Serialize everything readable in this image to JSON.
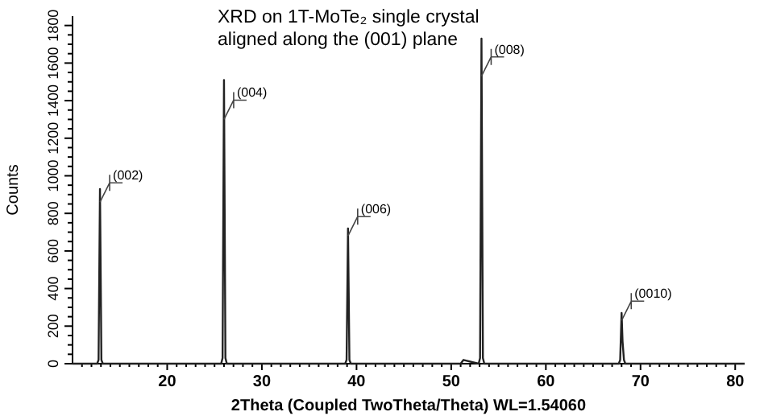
{
  "chart_data": {
    "type": "line",
    "title": "XRD on 1T-MoTe₂ single crystal\naligned along the (001) plane",
    "xlabel": "2Theta (Coupled TwoTheta/Theta) WL=1.54060",
    "ylabel": "Counts",
    "xlim": [
      10,
      81
    ],
    "ylim": [
      0,
      1850
    ],
    "xticks": [
      {
        "value": 11,
        "label": null
      },
      {
        "value": 12,
        "label": null
      },
      {
        "value": 13,
        "label": null
      },
      {
        "value": 14,
        "label": null
      },
      {
        "value": 15,
        "label": null
      },
      {
        "value": 16,
        "label": null
      },
      {
        "value": 17,
        "label": null
      },
      {
        "value": 18,
        "label": null
      },
      {
        "value": 19,
        "label": null
      },
      20,
      {
        "value": 21,
        "label": null
      },
      {
        "value": 22,
        "label": null
      },
      {
        "value": 23,
        "label": null
      },
      {
        "value": 24,
        "label": null
      },
      {
        "value": 25,
        "label": null
      },
      {
        "value": 26,
        "label": null
      },
      {
        "value": 27,
        "label": null
      },
      {
        "value": 28,
        "label": null
      },
      {
        "value": 29,
        "label": null
      },
      30,
      {
        "value": 31,
        "label": null
      },
      {
        "value": 32,
        "label": null
      },
      {
        "value": 33,
        "label": null
      },
      {
        "value": 34,
        "label": null
      },
      {
        "value": 35,
        "label": null
      },
      {
        "value": 36,
        "label": null
      },
      {
        "value": 37,
        "label": null
      },
      {
        "value": 38,
        "label": null
      },
      {
        "value": 39,
        "label": null
      },
      40,
      {
        "value": 41,
        "label": null
      },
      {
        "value": 42,
        "label": null
      },
      {
        "value": 43,
        "label": null
      },
      {
        "value": 44,
        "label": null
      },
      {
        "value": 45,
        "label": null
      },
      {
        "value": 46,
        "label": null
      },
      {
        "value": 47,
        "label": null
      },
      {
        "value": 48,
        "label": null
      },
      {
        "value": 49,
        "label": null
      },
      50,
      {
        "value": 51,
        "label": null
      },
      {
        "value": 52,
        "label": null
      },
      {
        "value": 53,
        "label": null
      },
      {
        "value": 54,
        "label": null
      },
      {
        "value": 55,
        "label": null
      },
      {
        "value": 56,
        "label": null
      },
      {
        "value": 57,
        "label": null
      },
      {
        "value": 58,
        "label": null
      },
      {
        "value": 59,
        "label": null
      },
      60,
      {
        "value": 61,
        "label": null
      },
      {
        "value": 62,
        "label": null
      },
      {
        "value": 63,
        "label": null
      },
      {
        "value": 64,
        "label": null
      },
      {
        "value": 65,
        "label": null
      },
      {
        "value": 66,
        "label": null
      },
      {
        "value": 67,
        "label": null
      },
      {
        "value": 68,
        "label": null
      },
      {
        "value": 69,
        "label": null
      },
      70,
      {
        "value": 71,
        "label": null
      },
      {
        "value": 72,
        "label": null
      },
      {
        "value": 73,
        "label": null
      },
      {
        "value": 74,
        "label": null
      },
      {
        "value": 75,
        "label": null
      },
      {
        "value": 76,
        "label": null
      },
      {
        "value": 77,
        "label": null
      },
      {
        "value": 78,
        "label": null
      },
      {
        "value": 79,
        "label": null
      },
      80
    ],
    "yticks": [
      0,
      {
        "value": 50,
        "label": null
      },
      {
        "value": 100,
        "label": null
      },
      {
        "value": 150,
        "label": null
      },
      200,
      {
        "value": 250,
        "label": null
      },
      {
        "value": 300,
        "label": null
      },
      {
        "value": 350,
        "label": null
      },
      400,
      {
        "value": 450,
        "label": null
      },
      {
        "value": 500,
        "label": null
      },
      {
        "value": 550,
        "label": null
      },
      600,
      {
        "value": 650,
        "label": null
      },
      {
        "value": 700,
        "label": null
      },
      {
        "value": 750,
        "label": null
      },
      800,
      {
        "value": 850,
        "label": null
      },
      {
        "value": 900,
        "label": null
      },
      {
        "value": 950,
        "label": null
      },
      1000,
      {
        "value": 1050,
        "label": null
      },
      {
        "value": 1100,
        "label": null
      },
      {
        "value": 1150,
        "label": null
      },
      1200,
      {
        "value": 1250,
        "label": null
      },
      {
        "value": 1300,
        "label": null
      },
      {
        "value": 1350,
        "label": null
      },
      1400,
      {
        "value": 1450,
        "label": null
      },
      {
        "value": 1500,
        "label": null
      },
      {
        "value": 1550,
        "label": null
      },
      1600,
      {
        "value": 1650,
        "label": null
      },
      {
        "value": 1700,
        "label": null
      },
      {
        "value": 1750,
        "label": null
      },
      1800
    ],
    "grid": false,
    "marker": "none",
    "line_style": "solid",
    "series": [
      {
        "color": "#222222",
        "x": [
          10,
          12.6,
          12.75,
          12.9,
          13.05,
          13.2,
          25.7,
          25.85,
          26.0,
          26.15,
          26.3,
          38.8,
          38.95,
          39.1,
          39.25,
          39.4,
          51.0,
          51.3,
          52.9,
          53.05,
          53.2,
          53.35,
          53.5,
          67.7,
          67.85,
          68.0,
          68.1,
          68.25,
          68.4,
          81
        ],
        "values": [
          0,
          0,
          20,
          930,
          20,
          0,
          0,
          30,
          1510,
          30,
          0,
          0,
          20,
          720,
          20,
          0,
          0,
          20,
          0,
          30,
          1730,
          30,
          0,
          0,
          20,
          270,
          120,
          20,
          0,
          0
        ]
      }
    ],
    "annotations": [
      {
        "text": "(002)",
        "x": 12.9,
        "y": 860
      },
      {
        "text": "(004)",
        "x": 26.0,
        "y": 1300
      },
      {
        "text": "(006)",
        "x": 39.1,
        "y": 680
      },
      {
        "text": "(008)",
        "x": 53.2,
        "y": 1530
      },
      {
        "text": "(0010)",
        "x": 68.0,
        "y": 230
      }
    ]
  }
}
